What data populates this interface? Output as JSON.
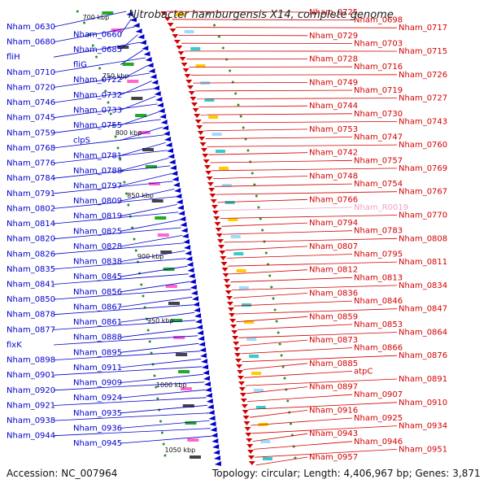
{
  "title": "Nitrobacter hamburgensis X14, complete genome",
  "accession": "Accession: NC_007964",
  "summary": "Topology: circular; Length: 4,406,967 bp; Genes: 3,871",
  "colors": {
    "forward": "#d40000",
    "reverse": "#0000cc",
    "rna": "#f2a0c4",
    "backbone": "#888888"
  },
  "kbp_ticks": [
    "700 kbp",
    "750 kbp",
    "800 kbp",
    "850 kbp",
    "900 kbp",
    "950 kbp",
    "1000 kbp",
    "1050 kbp"
  ],
  "left_labels": [
    "Nham_0630",
    "Nham_0660",
    "Nham_0680",
    "Nham_0685",
    "fliH",
    "fliG",
    "Nham_0710",
    "Nham_0722",
    "Nham_0720",
    "Nham_0732",
    "Nham_0746",
    "Nham_0733",
    "Nham_0745",
    "Nham_0755",
    "Nham_0759",
    "clpS",
    "Nham_0768",
    "Nham_0781",
    "Nham_0776",
    "Nham_0788",
    "Nham_0784",
    "Nham_0797",
    "Nham_0791",
    "Nham_0809",
    "Nham_0802",
    "Nham_0819",
    "Nham_0814",
    "Nham_0825",
    "Nham_0820",
    "Nham_0828",
    "Nham_0826",
    "Nham_0838",
    "Nham_0835",
    "Nham_0845",
    "Nham_0841",
    "Nham_0856",
    "Nham_0850",
    "Nham_0867",
    "Nham_0878",
    "Nham_0861",
    "Nham_0877",
    "Nham_0888",
    "fixK",
    "Nham_0895",
    "Nham_0898",
    "Nham_0911",
    "Nham_0901",
    "Nham_0909",
    "Nham_0920",
    "Nham_0924",
    "Nham_0921",
    "Nham_0935",
    "Nham_0938",
    "Nham_0936",
    "Nham_0944",
    "Nham_0945"
  ],
  "right_labels": [
    "Nham_0725",
    "Nham_0698",
    "Nham_0717",
    "Nham_0729",
    "Nham_0703",
    "Nham_0715",
    "Nham_0728",
    "Nham_0716",
    "Nham_0726",
    "Nham_0749",
    "Nham_0719",
    "Nham_0727",
    "Nham_0744",
    "Nham_0730",
    "Nham_0743",
    "Nham_0753",
    "Nham_0747",
    "Nham_0760",
    "Nham_0742",
    "Nham_0757",
    "Nham_0769",
    "Nham_0748",
    "Nham_0754",
    "Nham_0767",
    "Nham_0766",
    "Nham_R0019",
    "Nham_0770",
    "Nham_0794",
    "Nham_0783",
    "Nham_0808",
    "Nham_0807",
    "Nham_0795",
    "Nham_0811",
    "Nham_0812",
    "Nham_0813",
    "Nham_0834",
    "Nham_0836",
    "Nham_0846",
    "Nham_0847",
    "Nham_0859",
    "Nham_0853",
    "Nham_0864",
    "Nham_0873",
    "Nham_0866",
    "Nham_0876",
    "Nham_0885",
    "atpC",
    "Nham_0891",
    "Nham_0897",
    "Nham_0907",
    "Nham_0910",
    "Nham_0916",
    "Nham_0925",
    "Nham_0934",
    "Nham_0943",
    "Nham_0946",
    "Nham_0951",
    "Nham_0957"
  ]
}
